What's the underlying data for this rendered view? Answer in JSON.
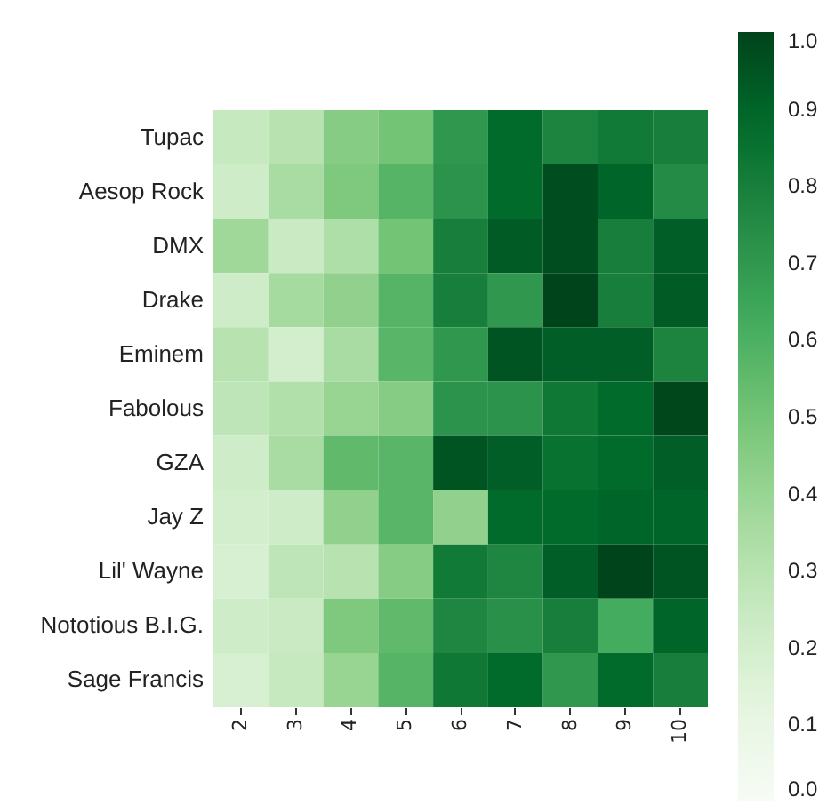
{
  "chart_data": {
    "type": "heatmap",
    "categories": [
      "2",
      "3",
      "4",
      "5",
      "6",
      "7",
      "8",
      "9",
      "10"
    ],
    "y_categories": [
      "Tupac",
      "Aesop Rock",
      "DMX",
      "Drake",
      "Eminem",
      "Fabolous",
      "GZA",
      "Jay Z",
      "Lil' Wayne",
      "Nototious B.I.G.",
      "Sage Francis"
    ],
    "cells": [
      [
        0.25,
        0.3,
        0.45,
        0.5,
        0.7,
        0.88,
        0.78,
        0.82,
        0.8
      ],
      [
        0.22,
        0.35,
        0.47,
        0.58,
        0.72,
        0.88,
        0.97,
        0.9,
        0.75
      ],
      [
        0.38,
        0.24,
        0.33,
        0.5,
        0.8,
        0.93,
        0.97,
        0.8,
        0.92
      ],
      [
        0.22,
        0.36,
        0.42,
        0.58,
        0.8,
        0.7,
        1.0,
        0.8,
        0.93
      ],
      [
        0.3,
        0.2,
        0.35,
        0.57,
        0.7,
        0.95,
        0.92,
        0.92,
        0.78
      ],
      [
        0.28,
        0.32,
        0.4,
        0.45,
        0.72,
        0.72,
        0.83,
        0.88,
        0.99
      ],
      [
        0.22,
        0.35,
        0.55,
        0.57,
        0.95,
        0.92,
        0.85,
        0.88,
        0.92
      ],
      [
        0.2,
        0.22,
        0.42,
        0.57,
        0.42,
        0.88,
        0.88,
        0.9,
        0.9
      ],
      [
        0.18,
        0.28,
        0.3,
        0.45,
        0.82,
        0.77,
        0.92,
        1.0,
        0.95
      ],
      [
        0.22,
        0.24,
        0.47,
        0.55,
        0.77,
        0.73,
        0.8,
        0.62,
        0.9
      ],
      [
        0.18,
        0.25,
        0.4,
        0.58,
        0.83,
        0.88,
        0.7,
        0.88,
        0.8
      ]
    ],
    "clim": [
      0,
      1
    ],
    "cticks": [
      {
        "value": 0,
        "label": "0.0"
      },
      {
        "value": 0.1,
        "label": "0.1"
      },
      {
        "value": 0.2,
        "label": "0.2"
      },
      {
        "value": 0.3,
        "label": "0.3"
      },
      {
        "value": 0.4,
        "label": "0.4"
      },
      {
        "value": 0.5,
        "label": "0.5"
      },
      {
        "value": 0.6,
        "label": "0.6"
      },
      {
        "value": 0.7,
        "label": "0.7"
      },
      {
        "value": 0.8,
        "label": "0.8"
      },
      {
        "value": 0.9,
        "label": "0.9"
      },
      {
        "value": 1,
        "label": "1.0"
      }
    ]
  }
}
